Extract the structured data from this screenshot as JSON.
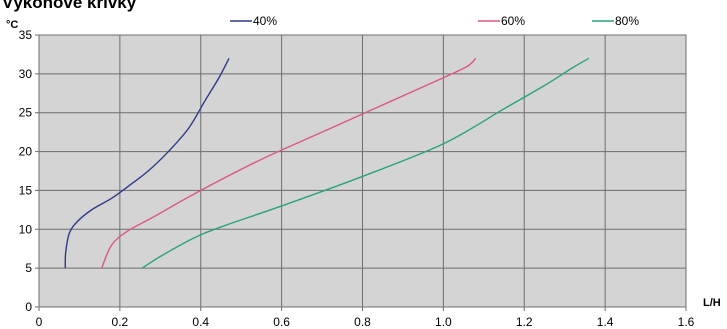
{
  "chart_data": {
    "type": "line",
    "title": "Výkonové křivky",
    "ylabel": "°C",
    "xlabel": "L/H",
    "xlim": [
      0,
      1.6
    ],
    "ylim": [
      0,
      35
    ],
    "xticks": [
      "0",
      "0.2",
      "0.4",
      "0.6",
      "0.8",
      "1.0",
      "1.2",
      "1.4",
      "1.6"
    ],
    "yticks": [
      "0",
      "5",
      "10",
      "15",
      "20",
      "25",
      "30",
      "35"
    ],
    "grid": true,
    "legend_position": "top",
    "plot_background": "#d4d4d4",
    "series": [
      {
        "name": "40%",
        "color": "#2e3a87",
        "points": [
          [
            0.065,
            5
          ],
          [
            0.066,
            7
          ],
          [
            0.075,
            9.5
          ],
          [
            0.095,
            11
          ],
          [
            0.13,
            12.5
          ],
          [
            0.18,
            14
          ],
          [
            0.22,
            15.5
          ],
          [
            0.27,
            17.5
          ],
          [
            0.32,
            20
          ],
          [
            0.37,
            23
          ],
          [
            0.41,
            26.5
          ],
          [
            0.445,
            29.5
          ],
          [
            0.47,
            32
          ]
        ]
      },
      {
        "name": "60%",
        "color": "#d9588a",
        "points": [
          [
            0.155,
            5
          ],
          [
            0.18,
            8
          ],
          [
            0.22,
            9.8
          ],
          [
            0.28,
            11.5
          ],
          [
            0.4,
            15
          ],
          [
            0.55,
            19
          ],
          [
            0.7,
            22.5
          ],
          [
            0.85,
            26
          ],
          [
            1.0,
            29.5
          ],
          [
            1.06,
            31
          ],
          [
            1.08,
            32
          ]
        ]
      },
      {
        "name": "80%",
        "color": "#2aa37a",
        "points": [
          [
            0.255,
            5
          ],
          [
            0.3,
            6.5
          ],
          [
            0.38,
            8.8
          ],
          [
            0.45,
            10.3
          ],
          [
            0.6,
            13
          ],
          [
            0.8,
            16.8
          ],
          [
            1.0,
            21
          ],
          [
            1.15,
            25.5
          ],
          [
            1.25,
            28.5
          ],
          [
            1.32,
            30.8
          ],
          [
            1.36,
            32
          ]
        ]
      }
    ]
  }
}
